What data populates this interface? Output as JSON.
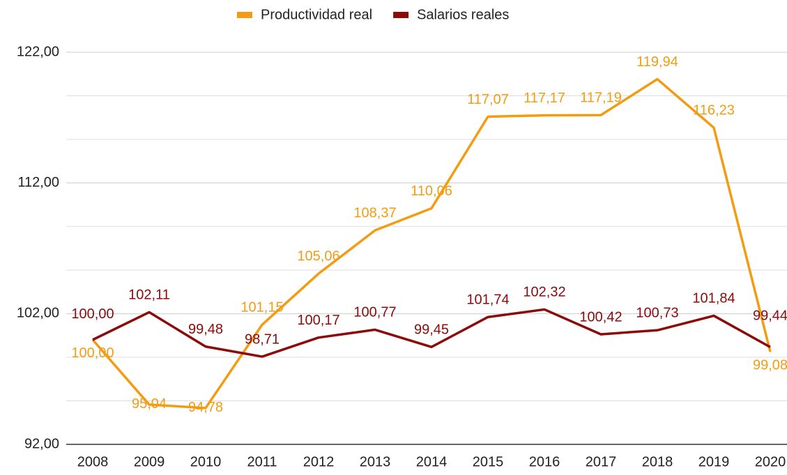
{
  "chart_data": {
    "type": "line",
    "categories": [
      "2008",
      "2009",
      "2010",
      "2011",
      "2012",
      "2013",
      "2014",
      "2015",
      "2016",
      "2017",
      "2018",
      "2019",
      "2020"
    ],
    "series": [
      {
        "name": "Productividad real",
        "color": "#f39c12",
        "values": [
          100.0,
          95.04,
          94.78,
          101.15,
          105.06,
          108.37,
          110.06,
          117.07,
          117.17,
          117.19,
          119.94,
          116.23,
          99.08
        ],
        "value_labels": [
          "100,00",
          "95,04",
          "94,78",
          "101,15",
          "105,06",
          "108,37",
          "110,06",
          "117,07",
          "117,17",
          "117,19",
          "119,94",
          "116,23",
          "99,08"
        ]
      },
      {
        "name": "Salarios reales",
        "color": "#8b0a0a",
        "values": [
          100.0,
          102.11,
          99.48,
          98.71,
          100.17,
          100.77,
          99.45,
          101.74,
          102.32,
          100.42,
          100.73,
          101.84,
          99.44
        ],
        "value_labels": [
          "100,00",
          "102,11",
          "99,48",
          "98,71",
          "100,17",
          "100,77",
          "99,45",
          "101,74",
          "102,32",
          "100,42",
          "100,73",
          "101,84",
          "99,44"
        ]
      }
    ],
    "ylim": [
      92,
      122
    ],
    "yticks": [
      {
        "value": 92,
        "label": "92,00"
      },
      {
        "value": 102,
        "label": "102,00"
      },
      {
        "value": 112,
        "label": "112,00"
      },
      {
        "value": 122,
        "label": "122,00"
      }
    ],
    "y_minor_ticks": [
      95.33,
      98.67,
      105.33,
      108.67,
      115.33,
      118.67
    ],
    "grid": true,
    "legend": "top"
  }
}
